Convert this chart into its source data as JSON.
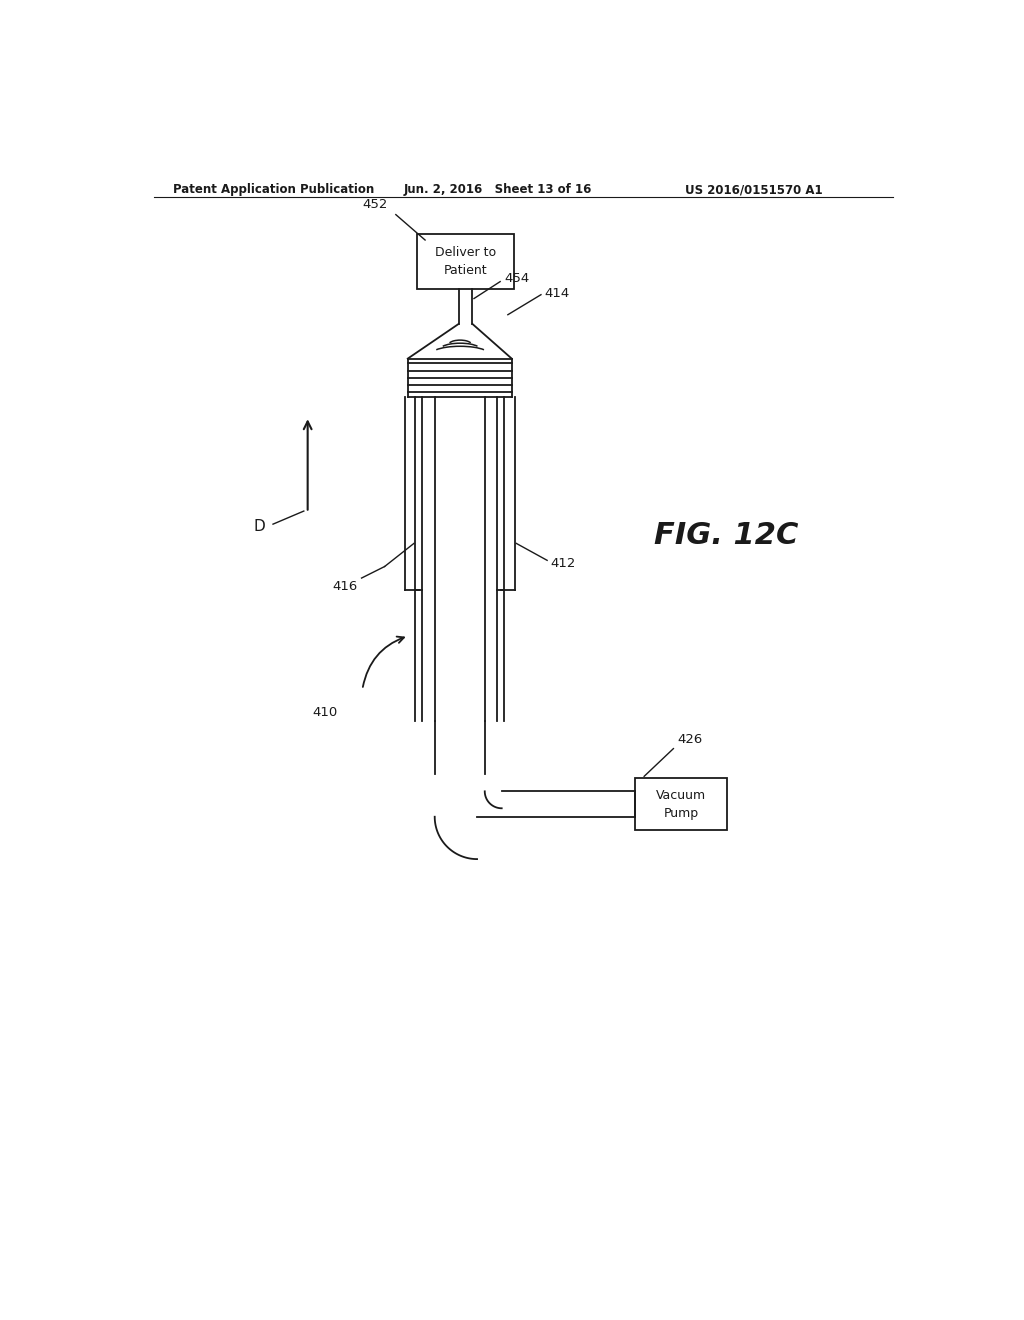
{
  "title": "FIG. 12C",
  "patent_header_left": "Patent Application Publication",
  "patent_header_mid": "Jun. 2, 2016   Sheet 13 of 16",
  "patent_header_right": "US 2016/0151570 A1",
  "bg_color": "#ffffff",
  "line_color": "#1a1a1a",
  "label_452": "452",
  "label_454": "454",
  "label_414": "414",
  "label_416": "416",
  "label_412": "412",
  "label_410": "410",
  "label_426": "426",
  "label_D": "D"
}
